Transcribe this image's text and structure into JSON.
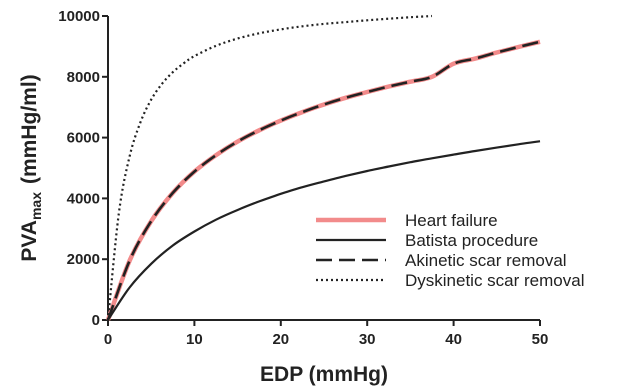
{
  "chart_data": {
    "type": "line",
    "title": "",
    "xlabel": "EDP (mmHg)",
    "ylabel": {
      "main": "PVA",
      "sub": "max",
      "unit": "(mmHg/ml)"
    },
    "xlim": [
      0,
      50
    ],
    "ylim": [
      0,
      10000
    ],
    "xticks": [
      0,
      10,
      20,
      30,
      40,
      50
    ],
    "yticks": [
      0,
      2000,
      4000,
      6000,
      8000,
      10000
    ],
    "grid": false,
    "legend_position": "bottom-right",
    "x": [
      0,
      2.5,
      5,
      7.5,
      10,
      12.5,
      15,
      17.5,
      20,
      22.5,
      25,
      27.5,
      30,
      32.5,
      35,
      37.5,
      40,
      42.5,
      45,
      47.5,
      50
    ],
    "series": [
      {
        "name": "Heart failure",
        "style": "solid",
        "color": "#f28b8b",
        "width": 4.5,
        "values": [
          0,
          1950,
          3250,
          4180,
          4880,
          5420,
          5870,
          6240,
          6560,
          6840,
          7090,
          7310,
          7500,
          7680,
          7840,
          8000,
          8430,
          8600,
          8800,
          8980,
          9150
        ]
      },
      {
        "name": "Batista procedure",
        "style": "solid",
        "color": "#222222",
        "width": 2.2,
        "values": [
          0,
          1070,
          1850,
          2450,
          2910,
          3300,
          3620,
          3900,
          4150,
          4370,
          4560,
          4740,
          4900,
          5050,
          5190,
          5320,
          5440,
          5560,
          5670,
          5780,
          5880
        ]
      },
      {
        "name": "Akinetic scar removal",
        "style": "dashed",
        "color": "#222222",
        "width": 2.6,
        "values": [
          0,
          1950,
          3250,
          4180,
          4880,
          5420,
          5870,
          6240,
          6560,
          6840,
          7090,
          7310,
          7500,
          7680,
          7840,
          8000,
          8430,
          8600,
          8800,
          8980,
          9150
        ]
      },
      {
        "name": "Dyskinetic scar removal",
        "style": "dotted",
        "color": "#222222",
        "width": 2.2,
        "x": [
          0,
          1.25,
          2.5,
          3.75,
          5,
          6.25,
          7.5,
          8.75,
          10,
          12.5,
          15,
          17.5,
          20,
          22.5,
          25,
          27.5,
          30,
          32.5,
          35,
          37.5
        ],
        "values": [
          0,
          3500,
          5380,
          6500,
          7250,
          7770,
          8150,
          8440,
          8680,
          9020,
          9260,
          9430,
          9560,
          9660,
          9740,
          9800,
          9860,
          9910,
          9960,
          10000
        ]
      }
    ]
  }
}
